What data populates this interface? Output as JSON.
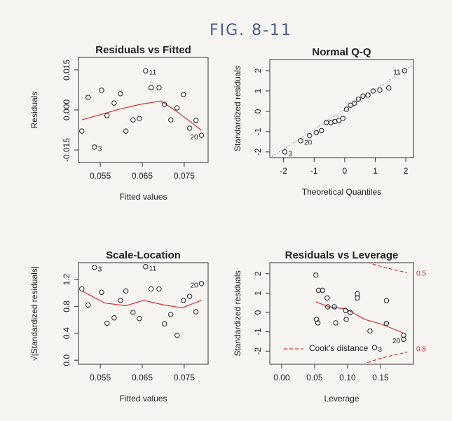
{
  "figure_title": "FIG. 8-11",
  "chart_data": [
    {
      "type": "scatter",
      "title": "Residuals vs Fitted",
      "xlabel": "Fitted values",
      "ylabel": "Residuals",
      "xlim": [
        0.0498,
        0.0807
      ],
      "ylim": [
        -0.0197,
        0.0197
      ],
      "xticks": [
        0.055,
        0.065,
        0.075
      ],
      "yticks": [
        -0.015,
        {
          "value": 0,
          "label": "0.000"
        },
        0.015
      ],
      "x": [
        0.0506,
        0.0521,
        0.0536,
        0.0553,
        0.0566,
        0.0583,
        0.0598,
        0.0611,
        0.0628,
        0.0643,
        0.0658,
        0.0671,
        0.069,
        0.0703,
        0.0718,
        0.0733,
        0.0748,
        0.0763,
        0.0778,
        0.0791
      ],
      "values": [
        -0.0079,
        0.0047,
        -0.0139,
        0.0074,
        -0.0021,
        0.0026,
        0.0061,
        -0.0079,
        -0.0037,
        -0.0032,
        0.0147,
        0.0084,
        0.0084,
        0.0021,
        -0.0037,
        0.0008,
        0.0058,
        -0.0068,
        -0.0039,
        -0.0095
      ],
      "point_labels": [
        null,
        null,
        "3",
        null,
        null,
        null,
        null,
        null,
        null,
        null,
        "11",
        null,
        null,
        null,
        null,
        null,
        null,
        null,
        null,
        "20"
      ],
      "color": "#222222",
      "smooth": {
        "color": "#e0302a",
        "x": [
          0.0506,
          0.0595,
          0.0645,
          0.0695,
          0.0737,
          0.0791
        ],
        "values": [
          -0.0037,
          0.0003,
          0.0021,
          0.0034,
          -0.0011,
          -0.0076
        ]
      }
    },
    {
      "type": "scatter",
      "title": "Normal Q-Q",
      "xlabel": "Theoretical Quantiles",
      "ylabel": "Standardized residuals",
      "xlim": [
        -2.45,
        2.25
      ],
      "ylim": [
        -2.28,
        2.55
      ],
      "xticks": [
        -2,
        -1,
        0,
        1,
        2
      ],
      "yticks": [
        -2,
        -1,
        0,
        1,
        2
      ],
      "x": [
        -1.96,
        -1.44,
        -1.15,
        -0.93,
        -0.76,
        -0.6,
        -0.45,
        -0.32,
        -0.19,
        -0.06,
        0.06,
        0.19,
        0.32,
        0.45,
        0.6,
        0.76,
        0.93,
        1.15,
        1.44,
        1.96
      ],
      "values": [
        -2.0,
        -1.45,
        -1.2,
        -1.05,
        -0.95,
        -0.55,
        -0.55,
        -0.5,
        -0.45,
        -0.35,
        0.1,
        0.3,
        0.4,
        0.6,
        0.75,
        0.8,
        1.0,
        1.05,
        1.15,
        2.0
      ],
      "point_labels": [
        "3",
        "20",
        null,
        null,
        null,
        null,
        null,
        null,
        null,
        null,
        null,
        null,
        null,
        null,
        null,
        null,
        null,
        null,
        null,
        "11"
      ],
      "color": "#222222",
      "reference_line": {
        "color": "#888888",
        "x": [
          -2.45,
          2.25
        ],
        "values": [
          -2.3,
          2.3
        ]
      }
    },
    {
      "type": "scatter",
      "title": "Scale-Location",
      "xlabel": "Fitted values",
      "ylabel": "√|Standardized residuals|",
      "xlim": [
        0.0498,
        0.0807
      ],
      "ylim": [
        -0.06,
        1.45
      ],
      "xticks": [
        0.055,
        0.065,
        0.075
      ],
      "yticks": [
        {
          "value": 0,
          "label": "0.0"
        },
        0.4,
        0.8,
        1.2
      ],
      "x": [
        0.0506,
        0.0521,
        0.0536,
        0.0553,
        0.0566,
        0.0583,
        0.0598,
        0.0611,
        0.0628,
        0.0643,
        0.0658,
        0.0671,
        0.069,
        0.0703,
        0.0718,
        0.0733,
        0.0748,
        0.0763,
        0.0778,
        0.0791
      ],
      "values": [
        1.06,
        0.82,
        1.38,
        1.01,
        0.55,
        0.63,
        0.89,
        1.03,
        0.71,
        0.62,
        1.39,
        1.06,
        1.06,
        0.54,
        0.68,
        0.37,
        0.89,
        0.95,
        0.72,
        1.14
      ],
      "point_labels": [
        null,
        null,
        "3",
        null,
        null,
        null,
        null,
        null,
        null,
        null,
        "11",
        null,
        null,
        null,
        null,
        null,
        null,
        null,
        null,
        "20"
      ],
      "color": "#222222",
      "smooth": {
        "color": "#e0302a",
        "x": [
          0.0506,
          0.0561,
          0.0611,
          0.0653,
          0.0703,
          0.0745,
          0.0791
        ],
        "values": [
          1.03,
          0.85,
          0.81,
          0.89,
          0.82,
          0.78,
          0.89
        ]
      }
    },
    {
      "type": "scatter",
      "title": "Residuals vs Leverage",
      "xlabel": "Leverage",
      "ylabel": "Standardized residuals",
      "xlim": [
        -0.018,
        0.2
      ],
      "ylim": [
        -2.68,
        2.57
      ],
      "xticks": [
        {
          "value": 0,
          "label": "0.00"
        },
        0.05,
        {
          "value": 0.1,
          "label": "0.10"
        },
        0.15
      ],
      "yticks": [
        -2,
        -1,
        0,
        1,
        2
      ],
      "x": [
        0.052,
        0.053,
        0.055,
        0.056,
        0.062,
        0.069,
        0.07,
        0.08,
        0.082,
        0.097,
        0.098,
        0.104,
        0.115,
        0.115,
        0.134,
        0.141,
        0.159,
        0.159,
        0.185,
        0.185
      ],
      "values": [
        1.93,
        -0.36,
        -0.54,
        1.14,
        1.14,
        0.75,
        0.29,
        0.29,
        -0.54,
        0.1,
        -0.36,
        0.0,
        0.96,
        0.75,
        -0.96,
        -1.82,
        0.61,
        -0.57,
        -1.18,
        -1.39
      ],
      "point_labels": [
        null,
        null,
        null,
        null,
        null,
        null,
        null,
        null,
        null,
        null,
        null,
        null,
        null,
        null,
        null,
        "3",
        null,
        null,
        null,
        "20"
      ],
      "color": "#222222",
      "smooth": {
        "color": "#e0302a",
        "x": [
          0.052,
          0.072,
          0.098,
          0.126,
          0.152,
          0.185
        ],
        "values": [
          0.54,
          0.29,
          0.18,
          -0.36,
          -0.61,
          -1.07
        ]
      },
      "cooks_lines": [
        {
          "label": "0.5",
          "color": "#e0302a",
          "x": [
            0.13,
            0.14,
            0.15,
            0.16,
            0.17,
            0.18,
            0.19
          ],
          "values": [
            2.59,
            2.48,
            2.38,
            2.29,
            2.21,
            2.13,
            2.06
          ]
        },
        {
          "label": "0.5",
          "color": "#e0302a",
          "x": [
            0.13,
            0.14,
            0.15,
            0.16,
            0.17,
            0.18,
            0.19
          ],
          "values": [
            -2.59,
            -2.48,
            -2.38,
            -2.29,
            -2.21,
            -2.13,
            -2.06
          ]
        }
      ],
      "legend": {
        "label": "Cook's distance",
        "corner": "bottom-left",
        "color": "#e0302a"
      }
    }
  ]
}
